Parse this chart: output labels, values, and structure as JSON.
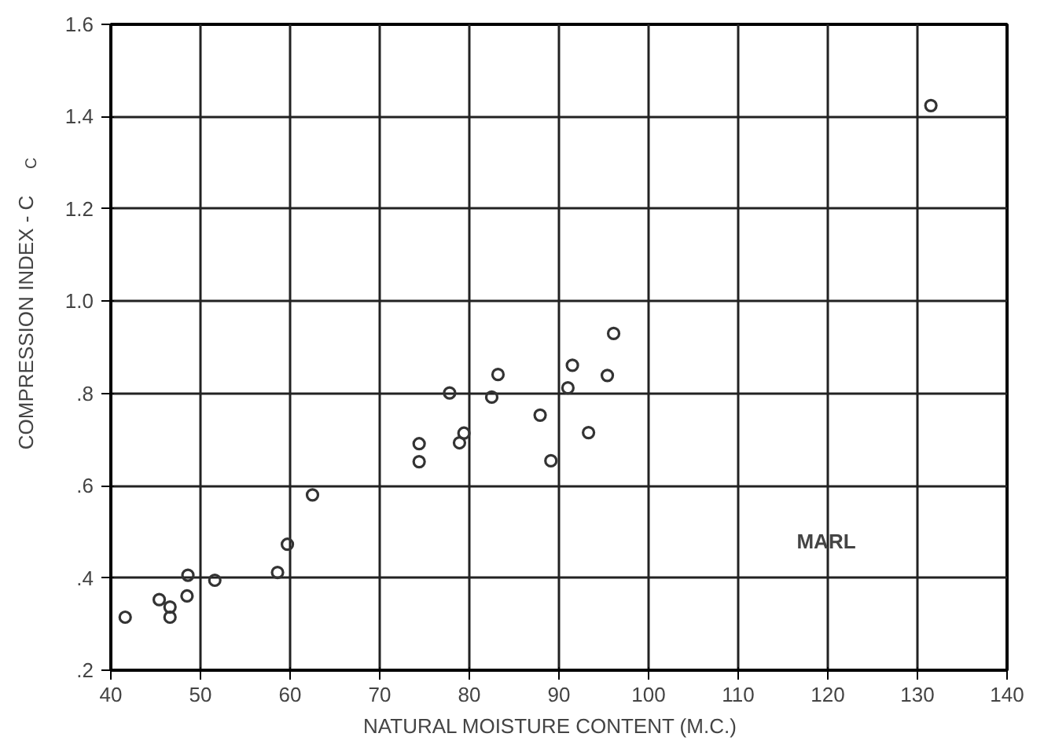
{
  "chart_data": {
    "type": "scatter",
    "xlabel": "NATURAL  MOISTURE  CONTENT  (M.C.)",
    "ylabel": "COMPRESSION  INDEX - C$_{C}$",
    "x": [
      41.6,
      45.4,
      46.6,
      46.6,
      48.5,
      48.6,
      51.6,
      58.6,
      59.7,
      62.5,
      74.4,
      74.4,
      77.8,
      78.9,
      79.4,
      82.5,
      83.2,
      87.9,
      89.1,
      91.0,
      91.5,
      93.3,
      95.4,
      96.1,
      131.5
    ],
    "series": [
      {
        "color": "#333333",
        "values": [
          0.315,
          0.353,
          0.337,
          0.315,
          0.361,
          0.406,
          0.395,
          0.412,
          0.473,
          0.58,
          0.691,
          0.652,
          0.801,
          0.693,
          0.714,
          0.792,
          0.841,
          0.753,
          0.654,
          0.812,
          0.861,
          0.715,
          0.839,
          0.93,
          1.424
        ]
      }
    ],
    "xlim": [
      40,
      140
    ],
    "xticks": [
      40,
      50,
      60,
      70,
      80,
      90,
      100,
      110,
      120,
      130,
      140
    ],
    "ylim": [
      0.2,
      1.6
    ],
    "yticks": [
      {
        "value": 0.2,
        "label": ".2"
      },
      {
        "value": 0.4,
        "label": ".4"
      },
      {
        "value": 0.6,
        "label": ".6"
      },
      {
        "value": 0.8,
        "label": ".8"
      },
      {
        "value": 1.0,
        "label": "1.0"
      },
      {
        "value": 1.2,
        "label": "1.2"
      },
      {
        "value": 1.4,
        "label": "1.4"
      },
      {
        "value": 1.6,
        "label": "1.6"
      }
    ],
    "annotations": [
      "MARL"
    ],
    "grid": true,
    "marker": "circle"
  }
}
